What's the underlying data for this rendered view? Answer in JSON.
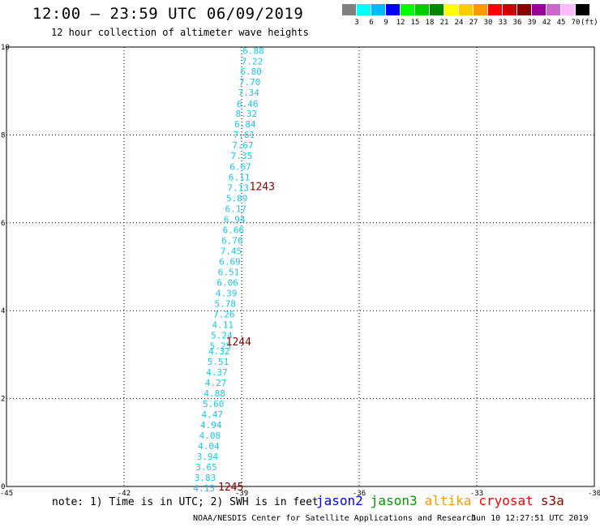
{
  "title": "12:00 — 23:59 UTC 06/09/2019",
  "subtitle": "12 hour collection of altimeter wave heights",
  "color_scale": {
    "labels": [
      "3",
      "6",
      "9",
      "12",
      "15",
      "18",
      "21",
      "24",
      "27",
      "30",
      "33",
      "36",
      "39",
      "42",
      "45",
      "70"
    ],
    "unit": "(ft)",
    "colors": [
      "#808080",
      "#00ffff",
      "#00bbff",
      "#0000ff",
      "#00ff00",
      "#00cc00",
      "#008800",
      "#ffff00",
      "#ffcc00",
      "#ff9900",
      "#ff0000",
      "#cc0000",
      "#880000",
      "#990099",
      "#cc66cc",
      "#ffbbff",
      "#000000"
    ]
  },
  "chart_data": {
    "type": "scatter",
    "xlim": [
      -45,
      -30
    ],
    "ylim": [
      0,
      10
    ],
    "x_ticks": [
      "-45",
      "-42",
      "-39",
      "-36",
      "-33",
      "-30"
    ],
    "y_ticks": [
      "0",
      "2",
      "4",
      "6",
      "8",
      "10"
    ],
    "grid": true,
    "point_color": "#18c8ee",
    "points": [
      {
        "x": -38.7,
        "y": 9.95,
        "label": "6.88"
      },
      {
        "x": -38.73,
        "y": 9.71,
        "label": "7.22"
      },
      {
        "x": -38.76,
        "y": 9.48,
        "label": "6.80"
      },
      {
        "x": -38.79,
        "y": 9.24,
        "label": "7.70"
      },
      {
        "x": -38.82,
        "y": 9.0,
        "label": "7.34"
      },
      {
        "x": -38.85,
        "y": 8.75,
        "label": "6.46"
      },
      {
        "x": -38.88,
        "y": 8.52,
        "label": "8.32"
      },
      {
        "x": -38.91,
        "y": 8.28,
        "label": "6.84"
      },
      {
        "x": -38.94,
        "y": 8.04,
        "label": "7.61"
      },
      {
        "x": -38.97,
        "y": 7.8,
        "label": "7.67"
      },
      {
        "x": -39.0,
        "y": 7.56,
        "label": "7.35"
      },
      {
        "x": -39.03,
        "y": 7.32,
        "label": "6.67"
      },
      {
        "x": -39.06,
        "y": 7.08,
        "label": "6.11"
      },
      {
        "x": -39.09,
        "y": 6.84,
        "label": "7.13"
      },
      {
        "x": -39.12,
        "y": 6.6,
        "label": "5.89"
      },
      {
        "x": -39.15,
        "y": 6.36,
        "label": "6.17"
      },
      {
        "x": -39.18,
        "y": 6.12,
        "label": "6.94"
      },
      {
        "x": -39.21,
        "y": 5.88,
        "label": "6.66"
      },
      {
        "x": -39.24,
        "y": 5.64,
        "label": "6.76"
      },
      {
        "x": -39.27,
        "y": 5.4,
        "label": "7.45"
      },
      {
        "x": -39.3,
        "y": 5.16,
        "label": "6.69"
      },
      {
        "x": -39.33,
        "y": 4.92,
        "label": "6.51"
      },
      {
        "x": -39.36,
        "y": 4.68,
        "label": "6.06"
      },
      {
        "x": -39.39,
        "y": 4.44,
        "label": "4.39"
      },
      {
        "x": -39.42,
        "y": 4.2,
        "label": "5.78"
      },
      {
        "x": -39.45,
        "y": 3.96,
        "label": "7.26"
      },
      {
        "x": -39.48,
        "y": 3.72,
        "label": "4.11"
      },
      {
        "x": -39.51,
        "y": 3.48,
        "label": "5.24"
      },
      {
        "x": -39.54,
        "y": 3.24,
        "label": "5.25"
      },
      {
        "x": -39.57,
        "y": 3.12,
        "label": "4.32"
      },
      {
        "x": -39.6,
        "y": 2.88,
        "label": "5.51"
      },
      {
        "x": -39.63,
        "y": 2.64,
        "label": "4.37"
      },
      {
        "x": -39.66,
        "y": 2.4,
        "label": "4.27"
      },
      {
        "x": -39.69,
        "y": 2.16,
        "label": "4.88"
      },
      {
        "x": -39.72,
        "y": 1.92,
        "label": "5.60"
      },
      {
        "x": -39.75,
        "y": 1.68,
        "label": "4.47"
      },
      {
        "x": -39.78,
        "y": 1.44,
        "label": "4.94"
      },
      {
        "x": -39.81,
        "y": 1.2,
        "label": "4.08"
      },
      {
        "x": -39.84,
        "y": 0.96,
        "label": "4.04"
      },
      {
        "x": -39.87,
        "y": 0.72,
        "label": "3.94"
      },
      {
        "x": -39.9,
        "y": 0.48,
        "label": "3.65"
      },
      {
        "x": -39.93,
        "y": 0.24,
        "label": "3.83"
      },
      {
        "x": -39.96,
        "y": 0.0,
        "label": "4.15"
      }
    ],
    "annotations": [
      {
        "x": -38.8,
        "y": 6.84,
        "text": "1243",
        "color": "#880000"
      },
      {
        "x": -39.4,
        "y": 3.3,
        "text": "1244",
        "color": "#880000"
      },
      {
        "x": -39.6,
        "y": 0.0,
        "text": "1245",
        "color": "#880000"
      }
    ]
  },
  "note": "note: 1) Time is in UTC; 2) SWH is in feet",
  "satellites": [
    {
      "name": "jason2",
      "color": "#0000ff"
    },
    {
      "name": "jason3",
      "color": "#009900"
    },
    {
      "name": "altika",
      "color": "#ff9900"
    },
    {
      "name": "cryosat",
      "color": "#ff0000"
    },
    {
      "name": "s3a",
      "color": "#880000"
    }
  ],
  "credit": "NOAA/NESDIS Center for Satellite Applications and Research",
  "timestamp": "Jun 10 12:27:51 UTC 2019"
}
